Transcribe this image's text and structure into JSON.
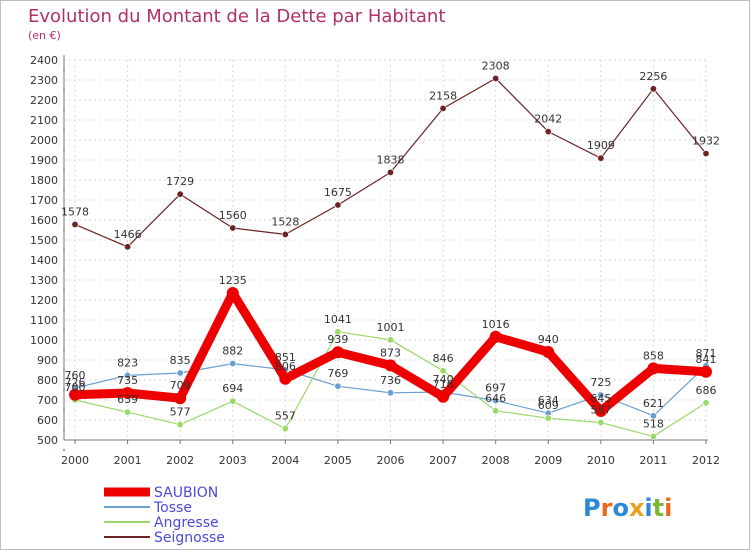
{
  "chart_data": {
    "type": "line",
    "title": "Evolution du Montant de la Dette par Habitant",
    "subtitle": "(en €)",
    "xlabel": "",
    "ylabel": "",
    "x": [
      "2000",
      "2001",
      "2002",
      "2003",
      "2004",
      "2005",
      "2006",
      "2007",
      "2008",
      "2009",
      "2010",
      "2011",
      "2012"
    ],
    "ylim": [
      500,
      2400
    ],
    "yticks": [
      500,
      600,
      700,
      800,
      900,
      1000,
      1100,
      1200,
      1300,
      1400,
      1500,
      1600,
      1700,
      1800,
      1900,
      2000,
      2100,
      2200,
      2300,
      2400
    ],
    "grid": true,
    "legend": "bottom-left",
    "series": [
      {
        "name": "SAUBION",
        "color": "#ee0000",
        "values": [
          726,
          735,
          709,
          1235,
          806,
          939,
          873,
          716,
          1016,
          940,
          645,
          858,
          841
        ]
      },
      {
        "name": "Tosse",
        "color": "#6a9fd0",
        "values": [
          760,
          823,
          835,
          882,
          851,
          769,
          736,
          740,
          697,
          634,
          725,
          621,
          871
        ]
      },
      {
        "name": "Angresse",
        "color": "#9ad96a",
        "values": [
          700,
          639,
          577,
          694,
          557,
          1041,
          1001,
          846,
          646,
          609,
          587,
          518,
          686
        ]
      },
      {
        "name": "Seignosse",
        "color": "#6b2323",
        "values": [
          1578,
          1466,
          1729,
          1560,
          1528,
          1675,
          1838,
          2158,
          2308,
          2042,
          1909,
          2256,
          1932
        ]
      }
    ]
  },
  "logo": {
    "letters": [
      "P",
      "r",
      "o",
      "x",
      "i",
      "t",
      "i"
    ]
  }
}
